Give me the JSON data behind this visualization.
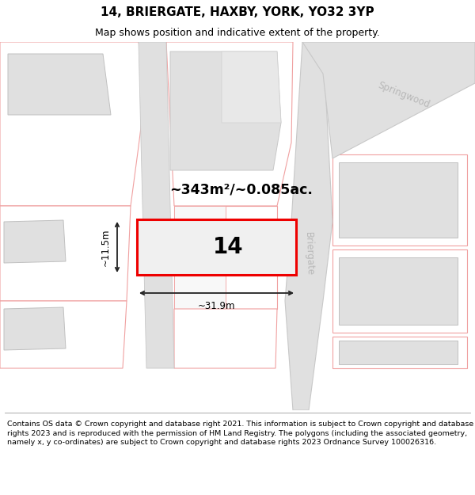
{
  "title": "14, BRIERGATE, HAXBY, YORK, YO32 3YP",
  "subtitle": "Map shows position and indicative extent of the property.",
  "footer": "Contains OS data © Crown copyright and database right 2021. This information is subject to Crown copyright and database rights 2023 and is reproduced with the permission of HM Land Registry. The polygons (including the associated geometry, namely x, y co-ordinates) are subject to Crown copyright and database rights 2023 Ordnance Survey 100026316.",
  "area_text": "~343m²/~0.085ac.",
  "property_number": "14",
  "width_label": "~31.9m",
  "height_label": "~11.5m",
  "map_bg": "#ffffff",
  "road_fill": "#e0e0e0",
  "building_fill": "#e0e0e0",
  "plot_outline": "#f0a0a0",
  "road_outline": "#c8c8c8",
  "red_color": "#ee0000",
  "dim_color": "#222222",
  "label_color": "#b8b8b8",
  "title_fontsize": 11,
  "subtitle_fontsize": 9,
  "footer_fontsize": 6.8
}
